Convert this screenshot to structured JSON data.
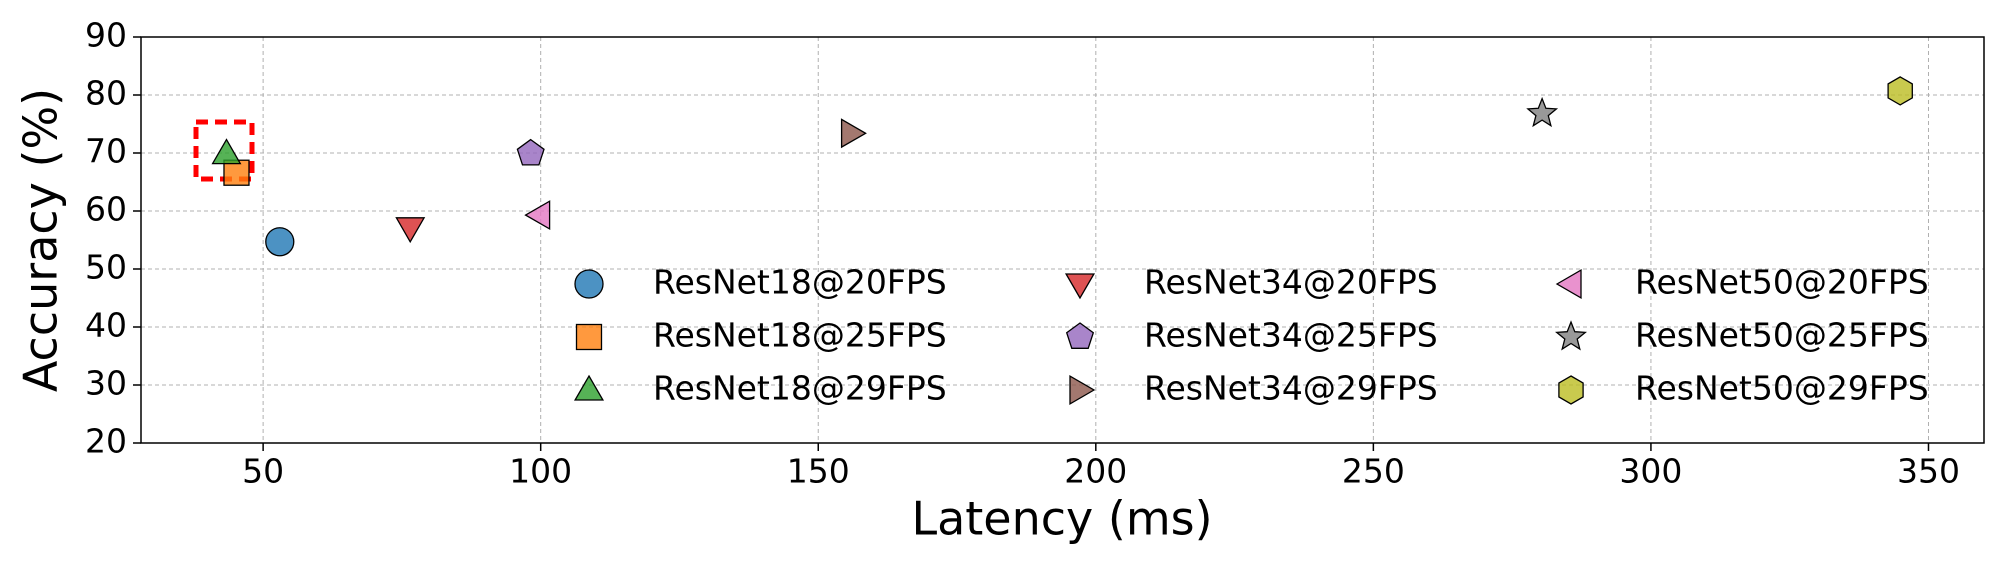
{
  "chart_data": {
    "type": "scatter",
    "xlabel": "Latency (ms)",
    "ylabel": "Accuracy (%)",
    "xlim": [
      28,
      360
    ],
    "ylim": [
      20,
      90
    ],
    "xticks": [
      50,
      100,
      150,
      200,
      250,
      300,
      350
    ],
    "yticks": [
      20,
      30,
      40,
      50,
      60,
      70,
      80,
      90
    ],
    "grid": true,
    "legend_columns": 3,
    "series": [
      {
        "name": "ResNet18@20FPS",
        "color": "#1f77b4",
        "marker": "circle",
        "x": [
          53
        ],
        "values": [
          54.7
        ]
      },
      {
        "name": "ResNet18@25FPS",
        "color": "#ff7f0e",
        "marker": "square",
        "x": [
          45.2
        ],
        "values": [
          66.6
        ]
      },
      {
        "name": "ResNet18@29FPS",
        "color": "#2ca02c",
        "marker": "triangle-up",
        "x": [
          43.4
        ],
        "values": [
          69.9
        ]
      },
      {
        "name": "ResNet34@20FPS",
        "color": "#d62728",
        "marker": "triangle-down",
        "x": [
          76.5
        ],
        "values": [
          57.1
        ]
      },
      {
        "name": "ResNet34@25FPS",
        "color": "#9467bd",
        "marker": "pentagon",
        "x": [
          98.2
        ],
        "values": [
          69.9
        ]
      },
      {
        "name": "ResNet34@29FPS",
        "color": "#8c564b",
        "marker": "triangle-right",
        "x": [
          156
        ],
        "values": [
          73.4
        ]
      },
      {
        "name": "ResNet50@20FPS",
        "color": "#e377c2",
        "marker": "triangle-left",
        "x": [
          99.8
        ],
        "values": [
          59.3
        ]
      },
      {
        "name": "ResNet50@25FPS",
        "color": "#7f7f7f",
        "marker": "star",
        "x": [
          280.4
        ],
        "values": [
          76.8
        ]
      },
      {
        "name": "ResNet50@29FPS",
        "color": "#bcbd22",
        "marker": "hexagon",
        "x": [
          344.9
        ],
        "values": [
          80.7
        ]
      }
    ]
  }
}
